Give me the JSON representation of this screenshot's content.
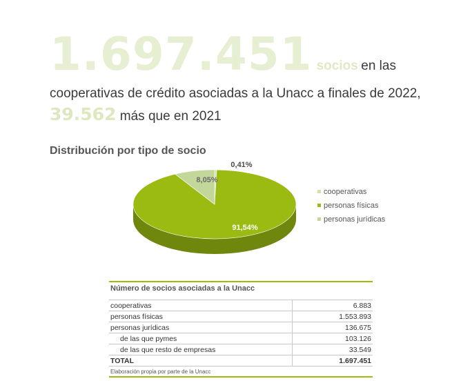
{
  "headline": {
    "big_number": "1.697.451",
    "unit_word": "socios",
    "line1_rest": "en las",
    "line2": "cooperativas de crédito asociadas a la Unacc a finales de 2022,",
    "increase_number": "39.562",
    "line3_rest": "más que en 2021"
  },
  "section_title": "Distribución por tipo de socio",
  "chart_data": {
    "type": "pie",
    "title": "",
    "categories": [
      "cooperativas",
      "personas físicas",
      "personas jurídicas"
    ],
    "values": [
      0.41,
      91.54,
      8.05
    ],
    "data_labels": [
      "0,41%",
      "91,54%",
      "8,05%"
    ],
    "colors": [
      "#d2e1a6",
      "#9bbb12",
      "#c3d79a"
    ],
    "legend_position": "right",
    "style": "3d"
  },
  "legend": {
    "items": [
      {
        "label": "cooperativas",
        "color": "#d2e1a6"
      },
      {
        "label": "personas físicas",
        "color": "#9bbb12"
      },
      {
        "label": "personas jurídicas",
        "color": "#c3d79a"
      }
    ]
  },
  "table": {
    "title": "Número de socios asociadas a la Unacc",
    "rows": [
      {
        "label": "cooperativas",
        "value": "6.883"
      },
      {
        "label": "personas físicas",
        "value": "1.553.893"
      },
      {
        "label": "personas jurídicas",
        "value": "136.675"
      },
      {
        "label": "de las que pymes",
        "value": "103.126"
      },
      {
        "label": "de las que resto de empresas",
        "value": "33.549"
      },
      {
        "label": "TOTAL",
        "value": "1.697.451"
      }
    ],
    "footnote": "Elaboración propia por parte de la Unacc"
  }
}
